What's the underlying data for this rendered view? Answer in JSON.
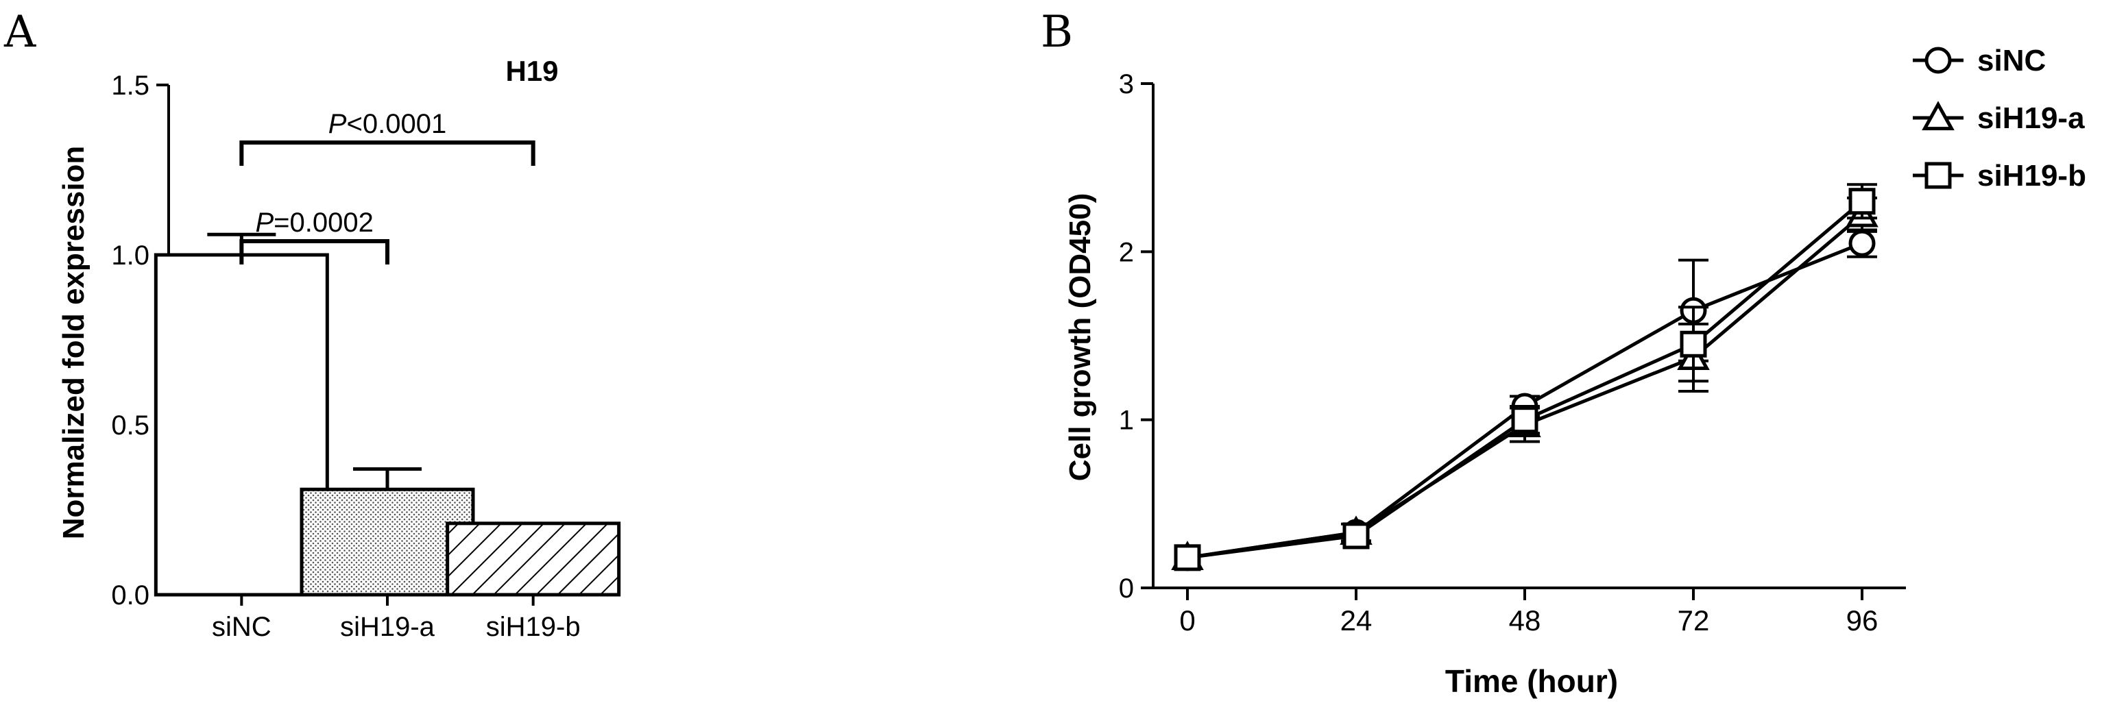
{
  "panels": {
    "a_label": "A",
    "b_label": "B"
  },
  "chart_data": [
    {
      "type": "bar",
      "title": "H19",
      "ylabel": "Normalized fold expression",
      "categories": [
        "siNC",
        "siH19-a",
        "siH19-b"
      ],
      "values": [
        1.0,
        0.31,
        0.21
      ],
      "errors": [
        0.06,
        0.06,
        0.005
      ],
      "fills": [
        "none",
        "dotted",
        "hatched"
      ],
      "ylim": [
        0,
        1.5
      ],
      "yticks": [
        "0.0",
        "0.5",
        "1.0",
        "1.5"
      ],
      "grid": false,
      "annotations": [
        {
          "from": 0,
          "to": 1,
          "label_italic": "P",
          "label_rest": "=0.0002"
        },
        {
          "from": 0,
          "to": 2,
          "label_italic": "P",
          "label_rest": "<0.0001"
        }
      ],
      "colors": {
        "stroke": "#000000",
        "background": "#ffffff"
      }
    },
    {
      "type": "line",
      "xlabel": "Time (hour)",
      "ylabel": "Cell growth (OD450)",
      "x": [
        0,
        24,
        48,
        72,
        96
      ],
      "xticks": [
        "0",
        "24",
        "48",
        "72",
        "96"
      ],
      "yticks": [
        "0",
        "1",
        "2",
        "3"
      ],
      "xlim": [
        0,
        96
      ],
      "ylim": [
        0,
        3
      ],
      "grid": false,
      "legend_position": "top-right",
      "series": [
        {
          "name": "siNC",
          "marker": "circle",
          "values": [
            0.18,
            0.33,
            1.08,
            1.65,
            2.05
          ],
          "errors": [
            0.03,
            0.04,
            0.06,
            0.3,
            0.08
          ]
        },
        {
          "name": "siH19-a",
          "marker": "triangle",
          "values": [
            0.18,
            0.33,
            0.97,
            1.37,
            2.22
          ],
          "errors": [
            0.03,
            0.05,
            0.1,
            0.2,
            0.1
          ]
        },
        {
          "name": "siH19-b",
          "marker": "square",
          "values": [
            0.18,
            0.31,
            1.0,
            1.45,
            2.3
          ],
          "errors": [
            0.03,
            0.04,
            0.08,
            0.22,
            0.1
          ]
        }
      ],
      "colors": {
        "stroke": "#000000"
      }
    }
  ]
}
